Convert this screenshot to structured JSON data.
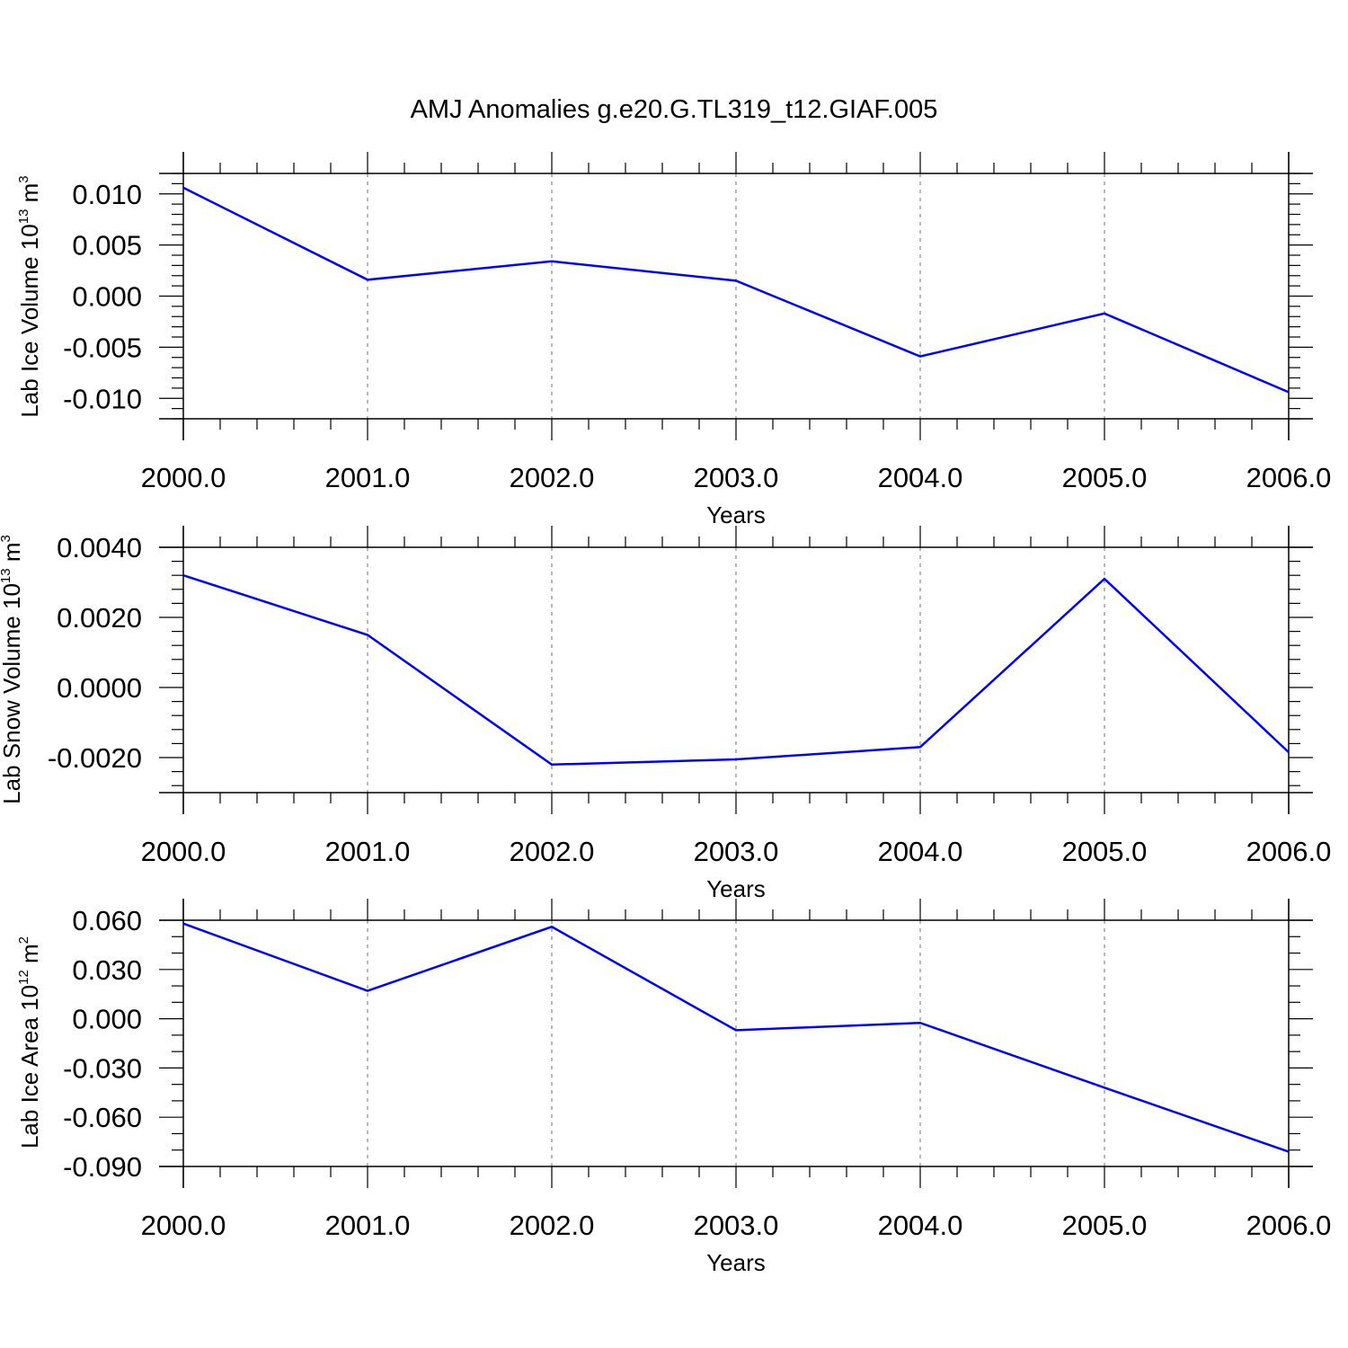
{
  "title": "AMJ Anomalies g.e20.G.TL319_t12.GIAF.005",
  "colors": {
    "line": "#0000ff",
    "axis": "#000000",
    "grid": "#888888",
    "background": "#ffffff"
  },
  "chart_data": [
    {
      "type": "line",
      "x": [
        2000,
        2001,
        2002,
        2003,
        2004,
        2005,
        2006
      ],
      "xticks": [
        2000,
        2001,
        2002,
        2003,
        2004,
        2005,
        2006
      ],
      "xtick_labels": [
        "2000.0",
        "2001.0",
        "2002.0",
        "2003.0",
        "2004.0",
        "2005.0",
        "2006.0"
      ],
      "xlim": [
        2000,
        2006
      ],
      "xlabel": "Years",
      "ylabel": {
        "text": "Lab Ice Volume 10",
        "exp": "13",
        "unit": " m",
        "unit_exp": "3"
      },
      "ylim": [
        -0.012,
        0.012
      ],
      "yticks": [
        -0.01,
        -0.005,
        0.0,
        0.005,
        0.01
      ],
      "ytick_labels": [
        "-0.010",
        "-0.005",
        "0.000",
        "0.005",
        "0.010"
      ],
      "yminor_step": 0.001,
      "values": [
        0.0106,
        0.0016,
        0.0034,
        0.0015,
        -0.0059,
        -0.0017,
        -0.0094
      ],
      "grid": "vertical dashed"
    },
    {
      "type": "line",
      "x": [
        2000,
        2001,
        2002,
        2003,
        2004,
        2005,
        2006
      ],
      "xticks": [
        2000,
        2001,
        2002,
        2003,
        2004,
        2005,
        2006
      ],
      "xtick_labels": [
        "2000.0",
        "2001.0",
        "2002.0",
        "2003.0",
        "2004.0",
        "2005.0",
        "2006.0"
      ],
      "xlim": [
        2000,
        2006
      ],
      "xlabel": "Years",
      "ylabel": {
        "text": "Lab Snow Volume 10",
        "exp": "13",
        "unit": " m",
        "unit_exp": "3"
      },
      "ylim": [
        -0.003,
        0.004
      ],
      "yticks": [
        -0.002,
        0.0,
        0.002,
        0.004
      ],
      "ytick_labels": [
        "-0.0020",
        "0.0000",
        "0.0020",
        "0.0040"
      ],
      "yminor_step": 0.0004,
      "values": [
        0.0032,
        0.0015,
        -0.0022,
        -0.00205,
        -0.0017,
        0.0031,
        -0.00185
      ],
      "grid": "vertical dashed"
    },
    {
      "type": "line",
      "x": [
        2000,
        2001,
        2002,
        2003,
        2004,
        2005,
        2006
      ],
      "xticks": [
        2000,
        2001,
        2002,
        2003,
        2004,
        2005,
        2006
      ],
      "xtick_labels": [
        "2000.0",
        "2001.0",
        "2002.0",
        "2003.0",
        "2004.0",
        "2005.0",
        "2006.0"
      ],
      "xlim": [
        2000,
        2006
      ],
      "xlabel": "Years",
      "ylabel": {
        "text": "Lab Ice Area 10",
        "exp": "12",
        "unit": " m",
        "unit_exp": "2"
      },
      "ylim": [
        -0.09,
        0.06
      ],
      "yticks": [
        -0.09,
        -0.06,
        -0.03,
        0.0,
        0.03,
        0.06
      ],
      "ytick_labels": [
        "-0.090",
        "-0.060",
        "-0.030",
        "0.000",
        "0.030",
        "0.060"
      ],
      "yminor_step": 0.01,
      "values": [
        0.058,
        0.017,
        0.056,
        -0.007,
        -0.0025,
        -0.042,
        -0.081
      ],
      "grid": "vertical dashed"
    }
  ]
}
